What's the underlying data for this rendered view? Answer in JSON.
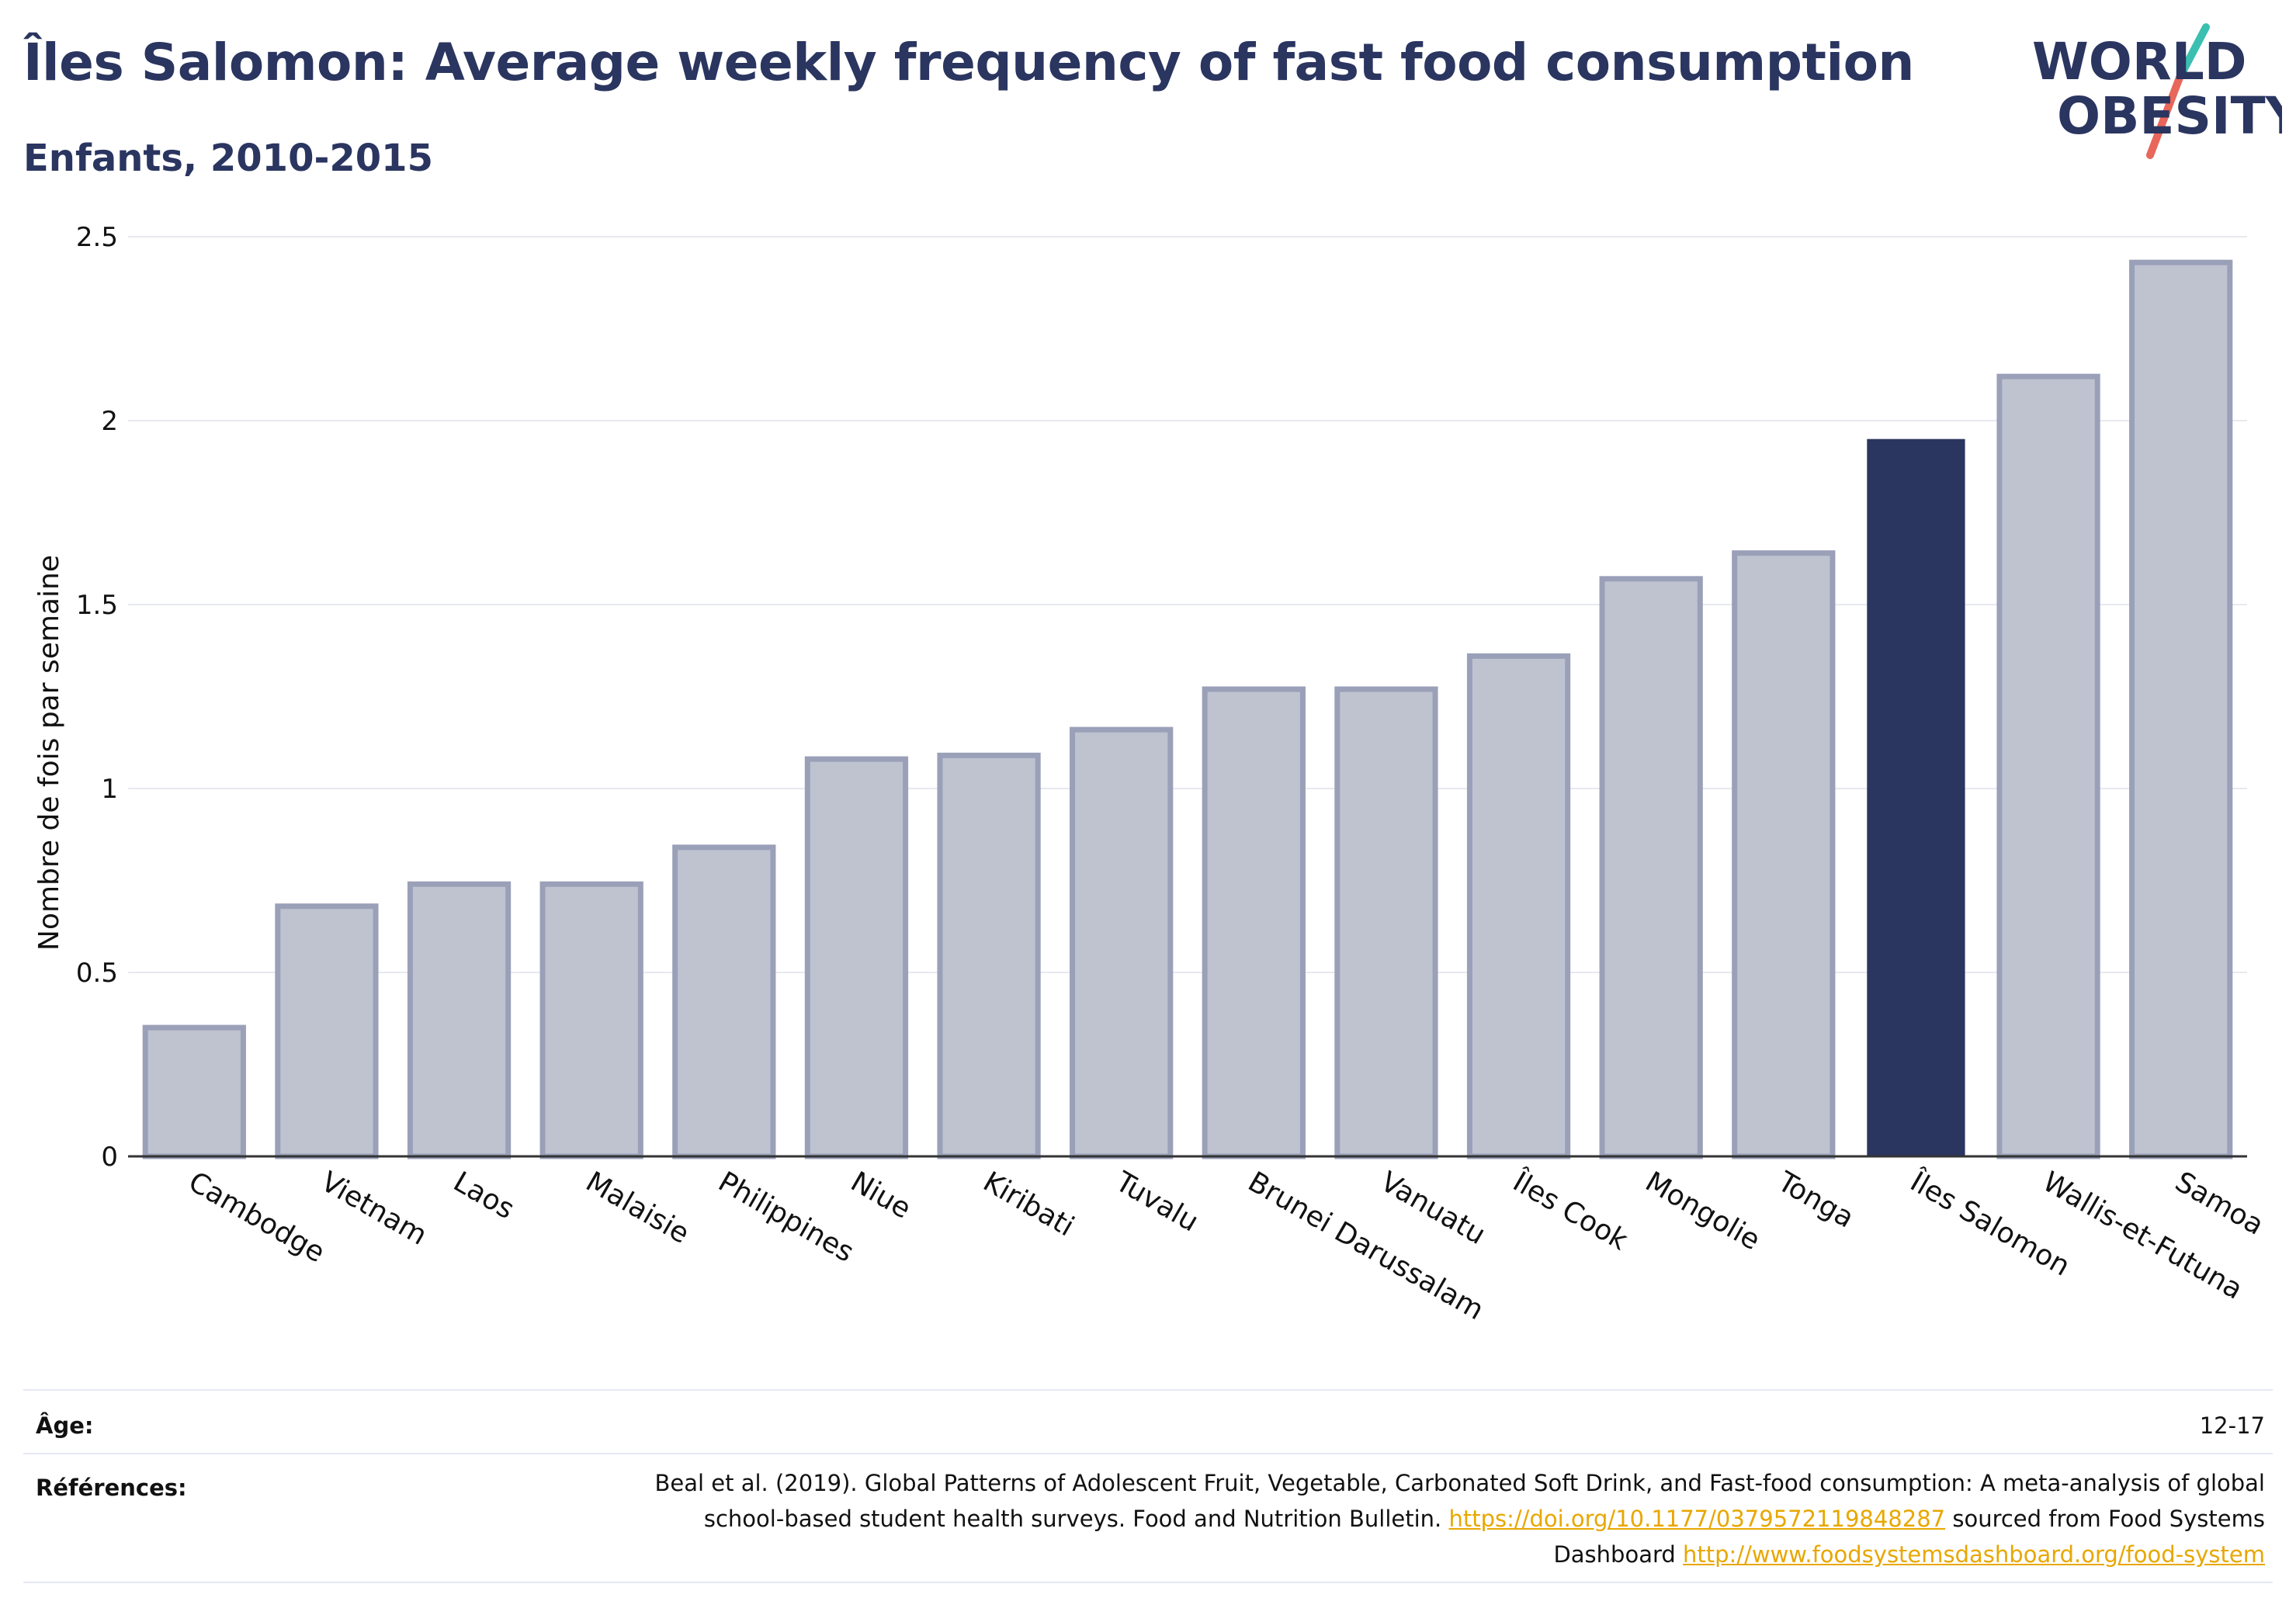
{
  "header": {
    "title": "Îles Salomon: Average weekly frequency of fast food consumption",
    "subtitle": "Enfants, 2010-2015"
  },
  "logo": {
    "line1": "WORLD",
    "line2": "OBESITY",
    "colors": {
      "text": "#2a3560",
      "slash_teal": "#3bbfb1",
      "slash_red": "#e8665a"
    }
  },
  "chart_data": {
    "type": "bar",
    "categories": [
      "Cambodge",
      "Vietnam",
      "Laos",
      "Malaisie",
      "Philippines",
      "Niue",
      "Kiribati",
      "Tuvalu",
      "Brunei Darussalam",
      "Vanuatu",
      "Îles Cook",
      "Mongolie",
      "Tonga",
      "Îles Salomon",
      "Wallis-et-Futuna",
      "Samoa"
    ],
    "values": [
      0.35,
      0.68,
      0.74,
      0.74,
      0.84,
      1.08,
      1.09,
      1.16,
      1.27,
      1.27,
      1.36,
      1.57,
      1.64,
      1.95,
      2.12,
      2.43
    ],
    "highlight": "Îles Salomon",
    "ylabel": "Nombre de fois par semaine",
    "xlabel": "",
    "ylim": [
      0,
      2.5
    ],
    "yticks": [
      "0",
      "0.5",
      "1",
      "1.5",
      "2",
      "2.5"
    ],
    "grid": true,
    "colors": {
      "bar": "#bfc3d0",
      "bar_outline": "#9aa0b8",
      "highlight": "#2a3560"
    }
  },
  "footer": {
    "age_label": "Âge:",
    "age_value": "12-17",
    "refs_label": "Références:",
    "refs_text_1": "Beal et al. (2019). Global Patterns of Adolescent Fruit, Vegetable, Carbonated Soft Drink, and Fast-food consumption: A meta-analysis of global school-based student health surveys. Food and Nutrition Bulletin.",
    "refs_link_1": "https://doi.org/10.1177/0379572119848287",
    "refs_text_2": "sourced from Food Systems Dashboard",
    "refs_link_2": "http://www.foodsystemsdashboard.org/food-system"
  }
}
